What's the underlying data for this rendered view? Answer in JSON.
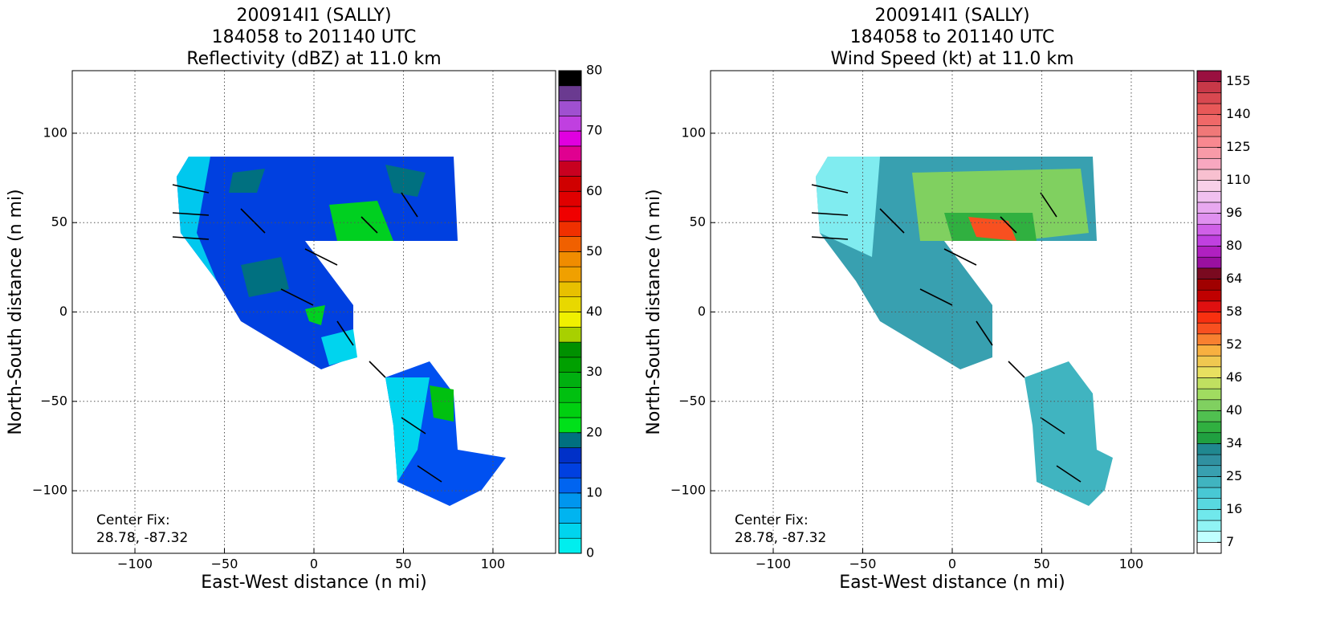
{
  "chart_data": [
    {
      "type": "radar-field",
      "title": "200914I1 (SALLY)",
      "subtitle": "184058 to 201140 UTC",
      "product": "Reflectivity (dBZ) at 11.0 km",
      "xlabel": "East-West distance (n mi)",
      "ylabel": "North-South distance (n mi)",
      "annotation": [
        "Center Fix:",
        "28.78, -87.32"
      ],
      "xlim": [
        -135,
        135
      ],
      "ylim": [
        -135,
        135
      ],
      "xticks": [
        {
          "value": -100,
          "label": "−100"
        },
        {
          "value": -50,
          "label": "−50"
        },
        0,
        50,
        100
      ],
      "yticks": [
        {
          "value": -100,
          "label": "−100"
        },
        {
          "value": -50,
          "label": "−50"
        },
        0,
        50,
        100
      ],
      "grid": true,
      "colorbar": {
        "levels": [
          0,
          2.5,
          5,
          7.5,
          10,
          12.5,
          15,
          17.5,
          20,
          22.5,
          25,
          27.5,
          30,
          32.5,
          35,
          37.5,
          40,
          42.5,
          45,
          47.5,
          50,
          52.5,
          55,
          57.5,
          60,
          62.5,
          65,
          67.5,
          70,
          72.5,
          75,
          77.5,
          80
        ],
        "colors": [
          "#00eeee",
          "#00d4ee",
          "#00b4f0",
          "#0096ee",
          "#0064f0",
          "#0040e0",
          "#0030c8",
          "#007080",
          "#00e01a",
          "#00d010",
          "#00c010",
          "#00b010",
          "#00a000",
          "#009000",
          "#a8d000",
          "#f0f000",
          "#e8d800",
          "#e8c000",
          "#f0a000",
          "#f08c00",
          "#f06000",
          "#f03000",
          "#f00000",
          "#e00000",
          "#d00000",
          "#c80020",
          "#e00090",
          "#e000e0",
          "#c040e0",
          "#a050d0",
          "#6a3a90",
          "#000000"
        ],
        "ticks": [
          0,
          10,
          20,
          30,
          40,
          50,
          60,
          70,
          80
        ]
      }
    },
    {
      "type": "radar-field",
      "title": "200914I1 (SALLY)",
      "subtitle": "184058 to 201140 UTC",
      "product": "Wind Speed (kt) at 11.0 km",
      "xlabel": "East-West distance (n mi)",
      "ylabel": "North-South distance (n mi)",
      "annotation": [
        "Center Fix:",
        "28.78, -87.32"
      ],
      "xlim": [
        -135,
        135
      ],
      "ylim": [
        -135,
        135
      ],
      "xticks": [
        {
          "value": -100,
          "label": "−100"
        },
        {
          "value": -50,
          "label": "−50"
        },
        0,
        50,
        100
      ],
      "yticks": [
        {
          "value": -100,
          "label": "−100"
        },
        {
          "value": -50,
          "label": "−50"
        },
        0,
        50,
        100
      ],
      "grid": true,
      "colorbar": {
        "levels": [
          0,
          7,
          10,
          13,
          16,
          19,
          22,
          25,
          28,
          31,
          34,
          36,
          38,
          40,
          42,
          44,
          46,
          48,
          50,
          52,
          54,
          56,
          58,
          60,
          62,
          64,
          69,
          75,
          80,
          85,
          91,
          96,
          101,
          105,
          110,
          115,
          120,
          125,
          130,
          135,
          140,
          145,
          150,
          155,
          160
        ],
        "colors": [
          "#ffffff",
          "#c0ffff",
          "#90f4f4",
          "#70e8ec",
          "#58d8e0",
          "#48c8d4",
          "#40b4c0",
          "#38a0b0",
          "#3090a0",
          "#208890",
          "#20a040",
          "#30b040",
          "#50c050",
          "#80d060",
          "#a0dc60",
          "#c0e060",
          "#e8e060",
          "#f0c850",
          "#f8b040",
          "#f88030",
          "#f85020",
          "#f83010",
          "#e01010",
          "#c00000",
          "#a00000",
          "#7a0a20",
          "#9a10a0",
          "#b020c0",
          "#c040e0",
          "#d060e8",
          "#e090f0",
          "#e8a8f0",
          "#f0c0f0",
          "#f8d0e8",
          "#f8c0d0",
          "#f8a8c0",
          "#f89aa8",
          "#f88890",
          "#f07878",
          "#f06868",
          "#e85858",
          "#d84850",
          "#c83848",
          "#9a1040"
        ],
        "ticks": [
          7,
          16,
          25,
          34,
          40,
          46,
          52,
          58,
          64,
          80,
          96,
          110,
          125,
          140,
          155
        ]
      }
    }
  ]
}
